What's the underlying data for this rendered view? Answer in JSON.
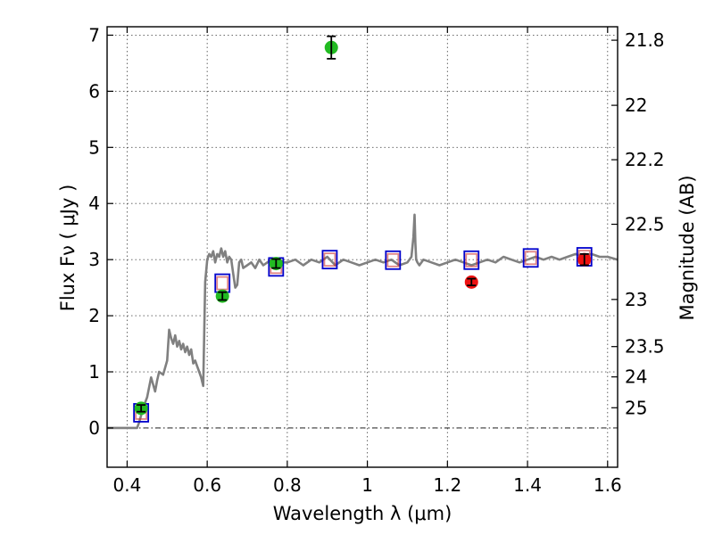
{
  "chart_data": {
    "type": "scatter",
    "xlabel": "Wavelength  λ (μm)",
    "ylabel": "Flux  Fν  ( μJy )",
    "y2label": "Magnitude (AB)",
    "xlim": [
      0.35,
      1.625
    ],
    "ylim": [
      -0.7,
      7.15
    ],
    "x_ticks": [
      0.4,
      0.6,
      0.8,
      1.0,
      1.2,
      1.4,
      1.6
    ],
    "x_tick_labels": [
      "0.4",
      "0.6",
      "0.8",
      "1",
      "1.2",
      "1.4",
      "1.6"
    ],
    "y_ticks": [
      0,
      1,
      2,
      3,
      4,
      5,
      6,
      7
    ],
    "y_tick_labels": [
      "0",
      "1",
      "2",
      "3",
      "4",
      "5",
      "6",
      "7"
    ],
    "magnitude_ticks": [
      {
        "label": "21.8",
        "flux": 6.91
      },
      {
        "label": "22",
        "flux": 5.75
      },
      {
        "label": "22.2",
        "flux": 4.78
      },
      {
        "label": "22.5",
        "flux": 3.63
      },
      {
        "label": "23",
        "flux": 2.29
      },
      {
        "label": "23.5",
        "flux": 1.45
      },
      {
        "label": "24",
        "flux": 0.91
      },
      {
        "label": "25",
        "flux": 0.36
      }
    ],
    "grid": true,
    "zero_line": true,
    "colors": {
      "spectrum": "#808080",
      "model_box": "#0000cc",
      "model_box_inner": "#cc3333",
      "obs_green": "#22bb22",
      "obs_red": "#ee1111",
      "errbar": "#000000"
    },
    "spectrum": {
      "x": [
        0.35,
        0.425,
        0.43,
        0.44,
        0.445,
        0.45,
        0.46,
        0.47,
        0.475,
        0.48,
        0.49,
        0.5,
        0.505,
        0.51,
        0.515,
        0.52,
        0.525,
        0.53,
        0.535,
        0.54,
        0.545,
        0.55,
        0.555,
        0.56,
        0.565,
        0.57,
        0.575,
        0.58,
        0.585,
        0.59,
        0.595,
        0.6,
        0.605,
        0.61,
        0.615,
        0.62,
        0.625,
        0.63,
        0.635,
        0.64,
        0.645,
        0.65,
        0.655,
        0.66,
        0.665,
        0.67,
        0.675,
        0.68,
        0.685,
        0.69,
        0.7,
        0.71,
        0.72,
        0.73,
        0.74,
        0.75,
        0.76,
        0.77,
        0.78,
        0.79,
        0.8,
        0.82,
        0.84,
        0.86,
        0.88,
        0.9,
        0.92,
        0.94,
        0.96,
        0.98,
        1.0,
        1.02,
        1.04,
        1.06,
        1.08,
        1.1,
        1.11,
        1.115,
        1.118,
        1.12,
        1.122,
        1.125,
        1.13,
        1.14,
        1.16,
        1.18,
        1.2,
        1.22,
        1.24,
        1.26,
        1.28,
        1.3,
        1.32,
        1.34,
        1.36,
        1.38,
        1.4,
        1.42,
        1.44,
        1.46,
        1.48,
        1.5,
        1.52,
        1.54,
        1.56,
        1.58,
        1.6,
        1.625
      ],
      "y": [
        0.0,
        0.0,
        0.1,
        0.35,
        0.45,
        0.55,
        0.9,
        0.65,
        0.85,
        1.0,
        0.95,
        1.2,
        1.75,
        1.6,
        1.5,
        1.65,
        1.45,
        1.55,
        1.4,
        1.5,
        1.35,
        1.45,
        1.3,
        1.4,
        1.15,
        1.2,
        1.1,
        1.0,
        0.9,
        0.75,
        2.6,
        3.0,
        3.1,
        3.05,
        3.15,
        2.95,
        3.1,
        3.05,
        3.2,
        3.05,
        3.15,
        2.95,
        3.05,
        3.0,
        2.75,
        2.5,
        2.55,
        2.95,
        3.0,
        2.85,
        2.9,
        2.95,
        2.85,
        3.0,
        2.9,
        2.95,
        3.0,
        2.9,
        3.0,
        2.95,
        2.95,
        3.0,
        2.9,
        3.0,
        2.95,
        3.05,
        2.9,
        3.0,
        2.95,
        2.9,
        2.95,
        3.0,
        2.95,
        3.0,
        2.9,
        2.95,
        3.05,
        3.4,
        3.8,
        3.3,
        3.0,
        2.95,
        2.9,
        3.0,
        2.95,
        2.9,
        2.95,
        3.0,
        2.95,
        2.9,
        2.95,
        3.0,
        2.95,
        3.05,
        3.0,
        2.95,
        3.0,
        3.05,
        3.0,
        3.05,
        3.0,
        3.05,
        3.1,
        3.05,
        3.1,
        3.05,
        3.05,
        3.0
      ]
    },
    "model_points": [
      {
        "x": 0.435,
        "y": 0.27
      },
      {
        "x": 0.638,
        "y": 2.58
      },
      {
        "x": 0.772,
        "y": 2.87
      },
      {
        "x": 0.906,
        "y": 3.0
      },
      {
        "x": 1.064,
        "y": 2.99
      },
      {
        "x": 1.26,
        "y": 2.99
      },
      {
        "x": 1.408,
        "y": 3.03
      },
      {
        "x": 1.542,
        "y": 3.05
      }
    ],
    "observed_points": [
      {
        "x": 0.435,
        "y": 0.35,
        "err": 0.05,
        "color": "green"
      },
      {
        "x": 0.638,
        "y": 2.35,
        "err": 0.07,
        "color": "green"
      },
      {
        "x": 0.772,
        "y": 2.93,
        "err": 0.08,
        "color": "green"
      },
      {
        "x": 0.91,
        "y": 6.78,
        "err": 0.2,
        "color": "green"
      },
      {
        "x": 1.26,
        "y": 2.6,
        "err": 0.0,
        "color": "red"
      },
      {
        "x": 1.542,
        "y": 3.0,
        "err": 0.1,
        "color": "red"
      }
    ]
  }
}
